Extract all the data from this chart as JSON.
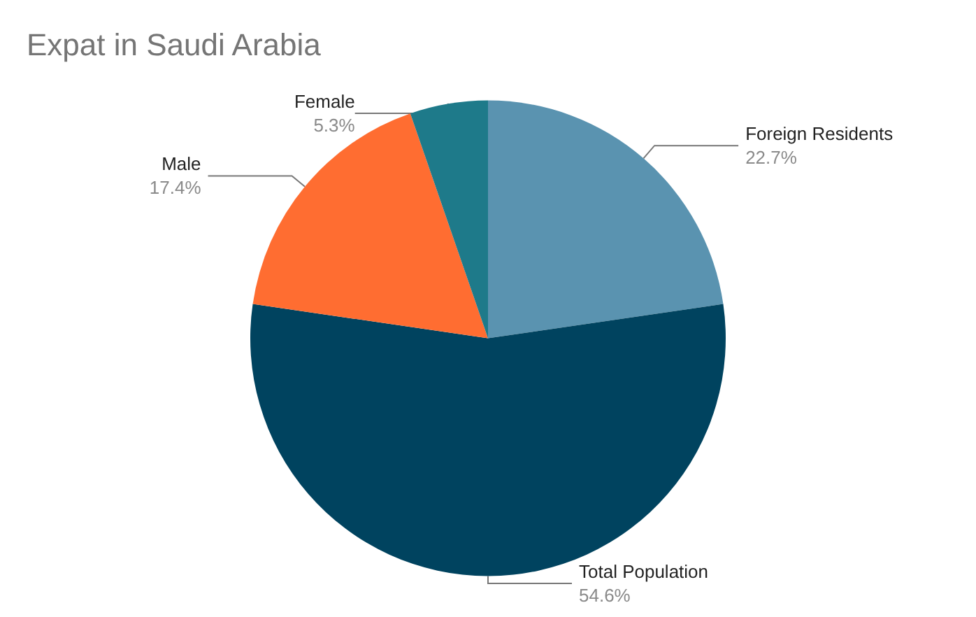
{
  "chart_data": {
    "type": "pie",
    "title": "Expat in Saudi Arabia",
    "categories": [
      "Foreign Residents",
      "Total Population",
      "Male",
      "Female"
    ],
    "values": [
      22.7,
      54.6,
      17.4,
      5.3
    ],
    "colors": [
      "#5a93b0",
      "#00435f",
      "#ff6d31",
      "#1e7a8a"
    ],
    "value_labels": [
      "22.7%",
      "54.6%",
      "17.4%",
      "5.3%"
    ],
    "legend": false
  }
}
